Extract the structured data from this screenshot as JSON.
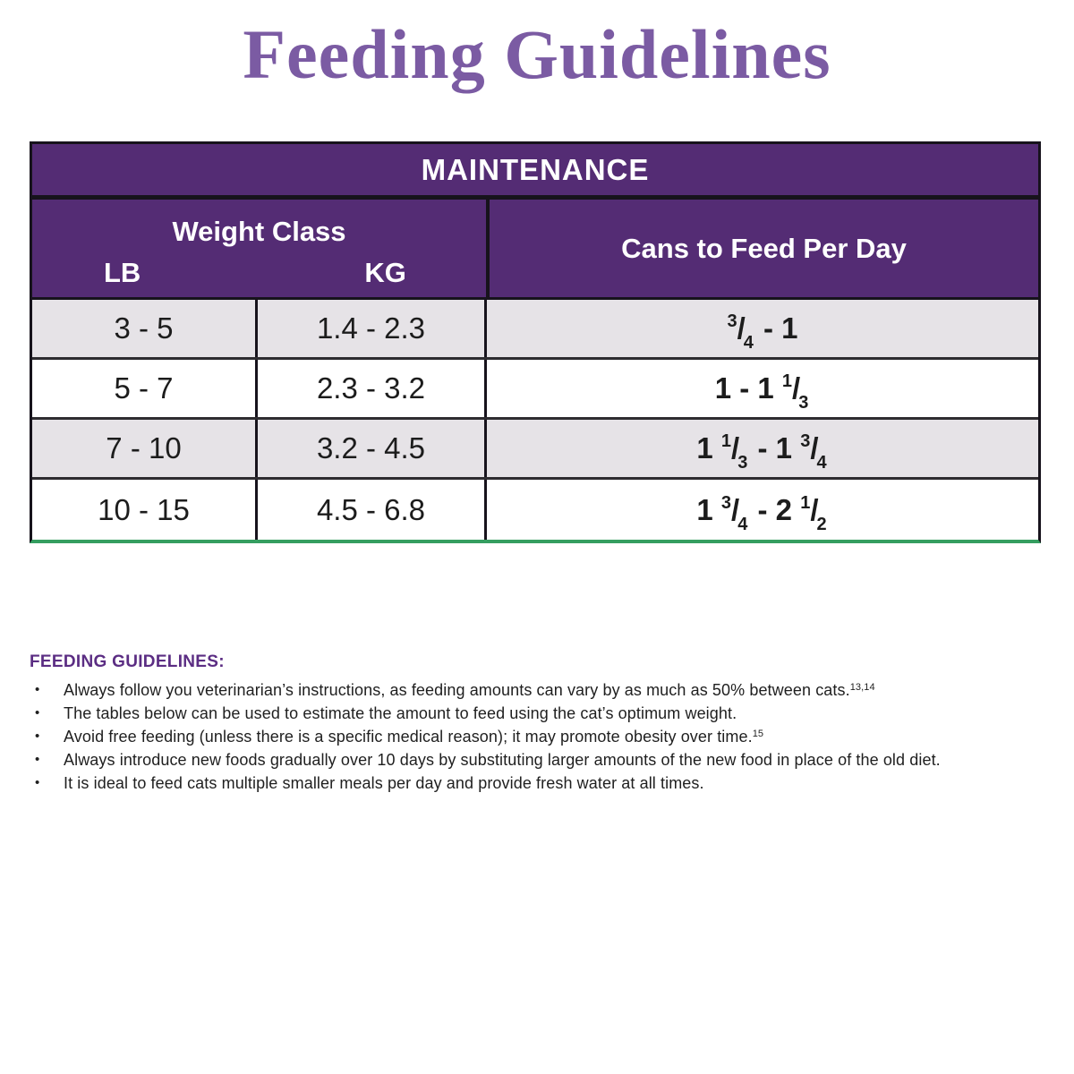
{
  "title": "Feeding Guidelines",
  "colors": {
    "title_purple": "#7b5ba3",
    "header_purple": "#542c74",
    "heading_purple": "#5b2d83",
    "row_alt_gray": "#e6e3e7",
    "table_bottom_green": "#359e60",
    "border_black": "#17131c"
  },
  "table": {
    "header": "MAINTENANCE",
    "weight_class_label": "Weight Class",
    "lb_label": "LB",
    "kg_label": "KG",
    "cans_label": "Cans to Feed Per Day",
    "rows": [
      {
        "lb": "3 - 5",
        "kg": "1.4 - 2.3",
        "cans": [
          {
            "frac": [
              "3",
              "4"
            ]
          },
          {
            "text": " - 1"
          }
        ]
      },
      {
        "lb": "5 - 7",
        "kg": "2.3 - 3.2",
        "cans": [
          {
            "text": "1 - 1 "
          },
          {
            "frac": [
              "1",
              "3"
            ]
          }
        ]
      },
      {
        "lb": "7 - 10",
        "kg": "3.2 - 4.5",
        "cans": [
          {
            "text": "1 "
          },
          {
            "frac": [
              "1",
              "3"
            ]
          },
          {
            "text": " - 1 "
          },
          {
            "frac": [
              "3",
              "4"
            ]
          }
        ]
      },
      {
        "lb": "10 - 15",
        "kg": "4.5 - 6.8",
        "cans": [
          {
            "text": "1 "
          },
          {
            "frac": [
              "3",
              "4"
            ]
          },
          {
            "text": " - 2 "
          },
          {
            "frac": [
              "1",
              "2"
            ]
          }
        ]
      }
    ]
  },
  "guidelines": {
    "heading": "FEEDING GUIDELINES:",
    "bullet_glyph": "•",
    "bullets": [
      {
        "text": "Always follow you veterinarian’s instructions, as feeding amounts can vary by as much as 50% between cats.",
        "sup": "13,14"
      },
      {
        "text": "The tables below can be used to estimate the amount to feed using the cat’s optimum weight.",
        "sup": ""
      },
      {
        "text": "Avoid free feeding (unless there is a specific medical reason); it may promote obesity over time.",
        "sup": "15"
      },
      {
        "text": "Always introduce new foods gradually over 10 days by substituting larger amounts of the new food in place of the old diet.",
        "sup": ""
      },
      {
        "text": "It is ideal to feed cats multiple smaller meals per day and provide fresh water at all times.",
        "sup": ""
      }
    ]
  }
}
